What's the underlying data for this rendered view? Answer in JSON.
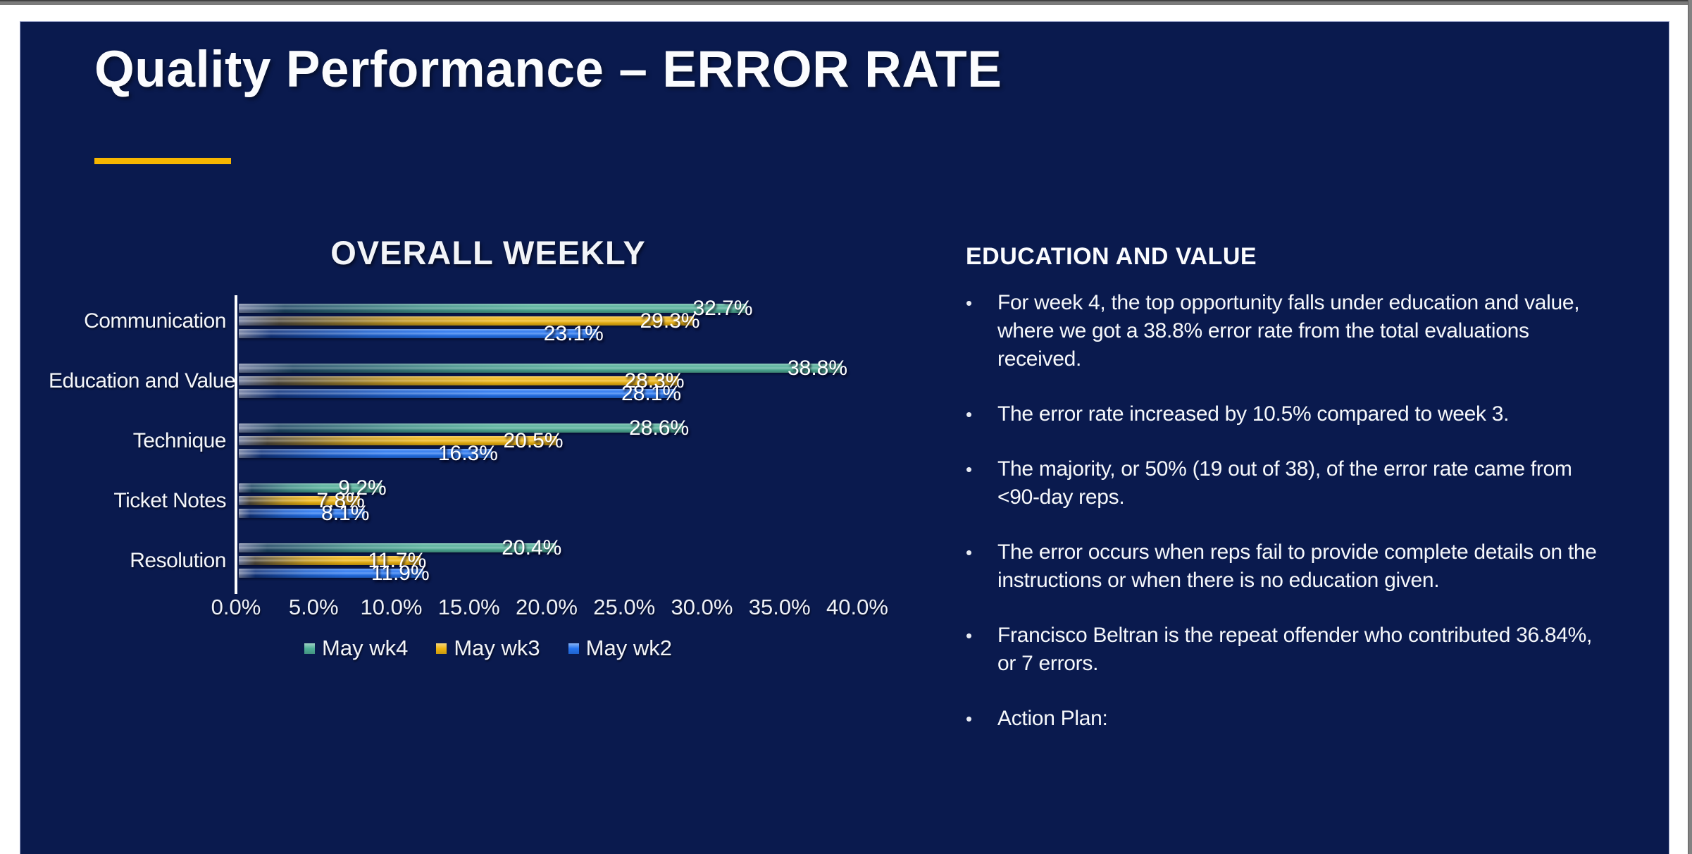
{
  "window": {
    "top_bar_color": "#7b7b7b",
    "right_edge_color": "#828282",
    "margin_color": "#ffffff"
  },
  "slide": {
    "background_color": "#0A1A4E",
    "title": "Quality Performance – ERROR RATE",
    "accent_bar_color": "#F7B600"
  },
  "chart_data": {
    "type": "bar",
    "orientation": "horizontal",
    "title": "OVERALL WEEKLY",
    "categories": [
      "Communication",
      "Education and Value",
      "Technique",
      "Ticket Notes",
      "Resolution"
    ],
    "series": [
      {
        "name": "May wk4",
        "color": "#4FAE97",
        "values": [
          32.7,
          38.8,
          28.6,
          9.2,
          20.4
        ]
      },
      {
        "name": "May wk3",
        "color": "#EFB511",
        "values": [
          29.3,
          28.3,
          20.5,
          7.8,
          11.7
        ]
      },
      {
        "name": "May wk2",
        "color": "#2574F0",
        "values": [
          23.1,
          28.1,
          16.3,
          8.1,
          11.9
        ]
      }
    ],
    "value_suffix": "%",
    "xlim": [
      0,
      40
    ],
    "x_ticks": [
      "0.0%",
      "5.0%",
      "10.0%",
      "15.0%",
      "20.0%",
      "25.0%",
      "30.0%",
      "35.0%",
      "40.0%"
    ],
    "legend_position": "bottom",
    "grid": false,
    "data_labels": true,
    "text_color": "#ffffff"
  },
  "notes": {
    "heading": "EDUCATION AND VALUE",
    "bullet_glyph": "•",
    "bullets": [
      {
        "lines": [
          "For week 4, the top opportunity falls under education and value,",
          "where we got a 38.8% error rate from the total evaluations",
          "received."
        ]
      },
      {
        "lines": [
          "The error rate increased by 10.5% compared to week 3."
        ]
      },
      {
        "lines": [
          "The majority, or 50% (19 out of 38), of the error rate came from",
          "<90-day reps."
        ]
      },
      {
        "lines": [
          "The error occurs when reps fail to provide complete details on the",
          "instructions or when there is no education given."
        ]
      },
      {
        "lines": [
          "Francisco Beltran is the repeat offender who contributed 36.84%,",
          "or 7 errors."
        ]
      },
      {
        "lines": [
          "Action Plan:"
        ]
      }
    ]
  }
}
